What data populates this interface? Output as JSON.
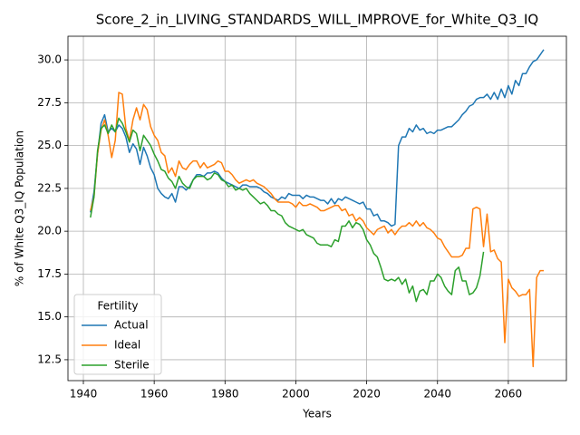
{
  "chart_data": {
    "type": "line",
    "title": "Score_2_in_LIVING_STANDARDS_WILL_IMPROVE_for_White_Q3_IQ",
    "xlabel": "Years",
    "ylabel": "% of White Q3_IQ Population",
    "legend_title": "Fertility",
    "legend": "lower left",
    "grid": true,
    "x": [
      1942,
      1943,
      1944,
      1945,
      1946,
      1947,
      1948,
      1949,
      1950,
      1951,
      1952,
      1953,
      1954,
      1955,
      1956,
      1957,
      1958,
      1959,
      1960,
      1961,
      1962,
      1963,
      1964,
      1965,
      1966,
      1967,
      1968,
      1969,
      1970,
      1971,
      1972,
      1973,
      1974,
      1975,
      1976,
      1977,
      1978,
      1979,
      1980,
      1981,
      1982,
      1983,
      1984,
      1985,
      1986,
      1987,
      1988,
      1989,
      1990,
      1991,
      1992,
      1993,
      1994,
      1995,
      1996,
      1997,
      1998,
      1999,
      2000,
      2001,
      2002,
      2003,
      2004,
      2005,
      2006,
      2007,
      2008,
      2009,
      2010,
      2011,
      2012,
      2013,
      2014,
      2015,
      2016,
      2017,
      2018,
      2019,
      2020,
      2021,
      2022,
      2023,
      2024,
      2025,
      2026,
      2027,
      2028,
      2029,
      2030,
      2031,
      2032,
      2033,
      2034,
      2035,
      2036,
      2037,
      2038,
      2039,
      2040,
      2041,
      2042,
      2043,
      2044,
      2045,
      2046,
      2047,
      2048,
      2049,
      2050,
      2051,
      2052,
      2053,
      2054,
      2055,
      2056,
      2057,
      2058,
      2059,
      2060,
      2061,
      2062,
      2063,
      2064,
      2065,
      2066,
      2067,
      2068,
      2069,
      2070
    ],
    "series": [
      {
        "name": "Actual",
        "color": "#1f77b4",
        "values": [
          21.1,
          22.3,
          24.5,
          26.3,
          26.8,
          25.8,
          26.0,
          25.8,
          26.2,
          26.0,
          25.5,
          24.6,
          25.1,
          24.8,
          23.9,
          24.9,
          24.4,
          23.7,
          23.3,
          22.5,
          22.2,
          22.0,
          21.9,
          22.2,
          21.7,
          22.6,
          22.6,
          22.4,
          22.6,
          23.0,
          23.3,
          23.3,
          23.2,
          23.4,
          23.4,
          23.5,
          23.4,
          23.1,
          22.9,
          22.8,
          22.7,
          22.6,
          22.5,
          22.7,
          22.7,
          22.6,
          22.6,
          22.6,
          22.5,
          22.3,
          22.2,
          22.0,
          21.9,
          21.8,
          22.0,
          21.9,
          22.2,
          22.1,
          22.1,
          22.1,
          21.9,
          22.1,
          22.0,
          22.0,
          21.9,
          21.8,
          21.8,
          21.6,
          21.9,
          21.6,
          21.9,
          21.8,
          22.0,
          21.9,
          21.8,
          21.7,
          21.6,
          21.7,
          21.3,
          21.3,
          20.9,
          21.0,
          20.6,
          20.6,
          20.5,
          20.3,
          20.4,
          25.0,
          25.5,
          25.5,
          26.0,
          25.8,
          26.2,
          25.9,
          26.0,
          25.7,
          25.8,
          25.7,
          25.9,
          25.9,
          26.0,
          26.1,
          26.1,
          26.3,
          26.5,
          26.8,
          27.0,
          27.3,
          27.4,
          27.7,
          27.8,
          27.8,
          28.0,
          27.7,
          28.1,
          27.7,
          28.3,
          27.8,
          28.5,
          28.0,
          28.8,
          28.5,
          29.2,
          29.2,
          29.6,
          29.9,
          30.0,
          30.3,
          30.6
        ]
      },
      {
        "name": "Ideal",
        "color": "#ff7f0e",
        "values": [
          21.2,
          22.0,
          24.5,
          25.9,
          26.5,
          25.6,
          24.3,
          25.3,
          28.1,
          28.0,
          26.0,
          25.3,
          26.5,
          27.2,
          26.5,
          27.4,
          27.1,
          26.1,
          25.6,
          25.3,
          24.6,
          24.4,
          23.4,
          23.7,
          23.2,
          24.1,
          23.7,
          23.6,
          23.9,
          24.1,
          24.1,
          23.7,
          24.0,
          23.7,
          23.8,
          23.9,
          24.1,
          24.0,
          23.5,
          23.5,
          23.3,
          23.0,
          22.8,
          22.9,
          23.0,
          22.9,
          23.0,
          22.8,
          22.7,
          22.6,
          22.4,
          22.2,
          21.9,
          21.7,
          21.7,
          21.7,
          21.7,
          21.6,
          21.4,
          21.7,
          21.5,
          21.5,
          21.6,
          21.5,
          21.4,
          21.2,
          21.2,
          21.3,
          21.4,
          21.5,
          21.5,
          21.2,
          21.3,
          20.9,
          21.0,
          20.6,
          20.8,
          20.6,
          20.2,
          20.0,
          19.8,
          20.1,
          20.2,
          20.3,
          19.9,
          20.1,
          19.8,
          20.1,
          20.3,
          20.3,
          20.5,
          20.3,
          20.6,
          20.3,
          20.5,
          20.2,
          20.1,
          19.9,
          19.6,
          19.5,
          19.1,
          18.8,
          18.5,
          18.5,
          18.5,
          18.6,
          19.0,
          19.0,
          21.3,
          21.4,
          21.3,
          19.1,
          21.0,
          18.8,
          18.9,
          18.4,
          18.2,
          13.5,
          17.2,
          16.7,
          16.5,
          16.2,
          16.3,
          16.3,
          16.6,
          12.1,
          17.3,
          17.7,
          17.7
        ]
      },
      {
        "name": "Sterile",
        "color": "#2ca02c",
        "values": [
          20.8,
          22.0,
          24.7,
          26.0,
          26.2,
          25.7,
          26.2,
          25.8,
          26.6,
          26.3,
          25.8,
          25.2,
          25.9,
          25.7,
          24.7,
          25.6,
          25.3,
          25.0,
          24.5,
          24.1,
          23.6,
          23.5,
          23.1,
          22.9,
          22.5,
          23.2,
          22.8,
          22.6,
          22.5,
          23.0,
          23.2,
          23.2,
          23.2,
          23.0,
          23.1,
          23.4,
          23.3,
          23.0,
          22.9,
          22.6,
          22.7,
          22.4,
          22.5,
          22.4,
          22.5,
          22.2,
          22.0,
          21.8,
          21.6,
          21.7,
          21.5,
          21.2,
          21.2,
          21.0,
          20.9,
          20.5,
          20.3,
          20.2,
          20.1,
          20.0,
          20.1,
          19.8,
          19.7,
          19.6,
          19.3,
          19.2,
          19.2,
          19.2,
          19.1,
          19.5,
          19.4,
          20.3,
          20.3,
          20.6,
          20.2,
          20.5,
          20.4,
          20.1,
          19.5,
          19.2,
          18.7,
          18.5,
          17.9,
          17.2,
          17.1,
          17.2,
          17.1,
          17.3,
          16.9,
          17.2,
          16.4,
          16.8,
          15.9,
          16.5,
          16.6,
          16.3,
          17.1,
          17.1,
          17.5,
          17.3,
          16.8,
          16.5,
          16.3,
          17.7,
          17.9,
          17.1,
          17.1,
          16.3,
          16.4,
          16.7,
          17.4,
          18.8,
          null,
          null,
          null,
          null,
          null,
          null,
          null,
          null,
          null,
          null,
          null,
          null,
          null,
          null,
          null,
          null,
          null
        ]
      }
    ],
    "xlim": [
      1935.65,
      2076.4
    ],
    "xticks": [
      1940,
      1960,
      1980,
      2000,
      2020,
      2040,
      2060
    ],
    "ylim": [
      11.28,
      31.38
    ],
    "yticks": [
      12.5,
      {
        "value": 15,
        "label": "15.0"
      },
      17.5,
      {
        "value": 20,
        "label": "20.0"
      },
      22.5,
      {
        "value": 25,
        "label": "25.0"
      },
      27.5,
      {
        "value": 30,
        "label": "30.0"
      }
    ]
  }
}
